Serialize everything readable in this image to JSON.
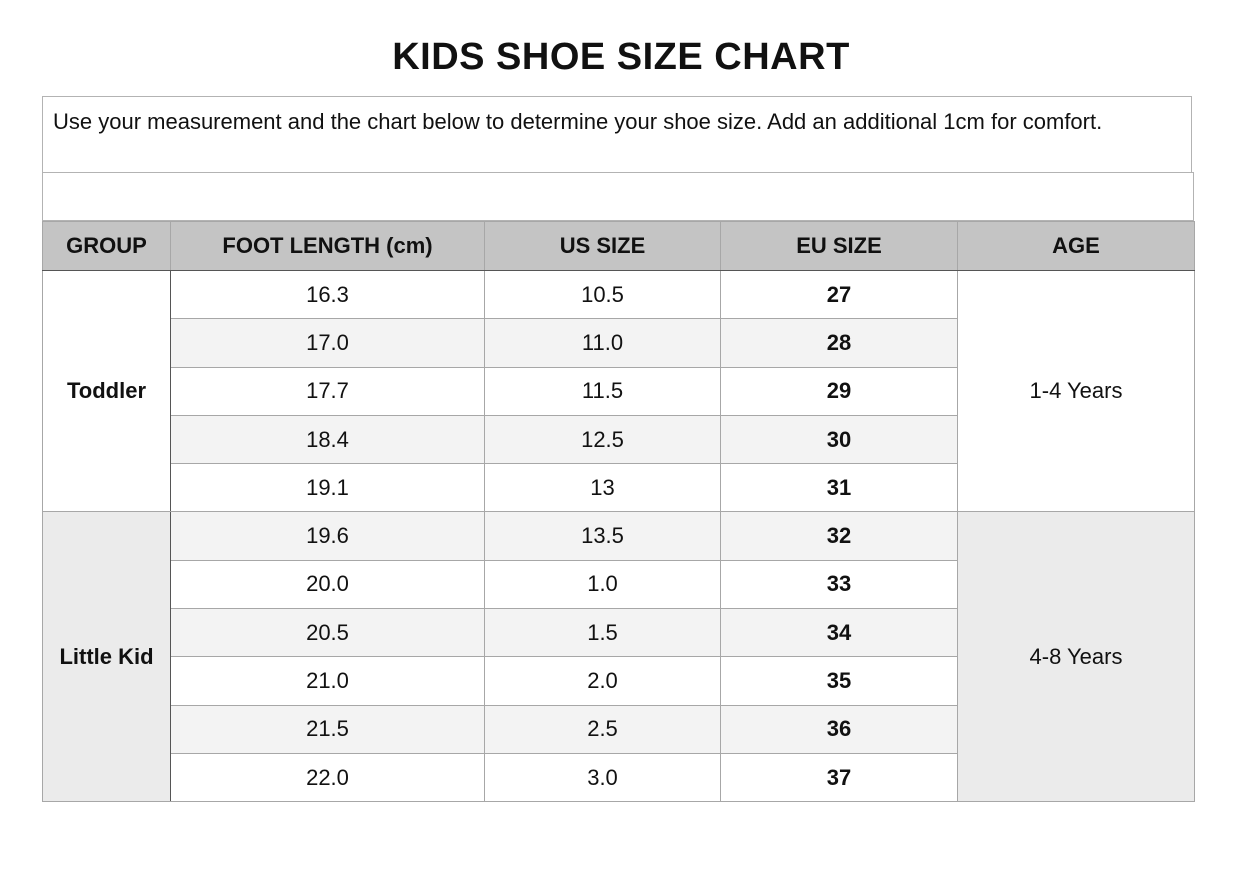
{
  "title": "KIDS SHOE SIZE CHART",
  "note": "Use your measurement and the chart below to determine your shoe size. Add an additional 1cm for comfort.",
  "headers": {
    "group": "GROUP",
    "foot_length": "FOOT LENGTH (cm)",
    "us_size": "US SIZE",
    "eu_size": "EU SIZE",
    "age": "AGE"
  },
  "groups": [
    {
      "name": "Toddler",
      "age": "1-4 Years",
      "rows": [
        {
          "foot_length": "16.3",
          "us_size": "10.5",
          "eu_size": "27"
        },
        {
          "foot_length": "17.0",
          "us_size": "11.0",
          "eu_size": "28"
        },
        {
          "foot_length": "17.7",
          "us_size": "11.5",
          "eu_size": "29"
        },
        {
          "foot_length": "18.4",
          "us_size": "12.5",
          "eu_size": "30"
        },
        {
          "foot_length": "19.1",
          "us_size": "13",
          "eu_size": "31"
        }
      ]
    },
    {
      "name": "Little Kid",
      "age": "4-8 Years",
      "rows": [
        {
          "foot_length": "19.6",
          "us_size": "13.5",
          "eu_size": "32"
        },
        {
          "foot_length": "20.0",
          "us_size": "1.0",
          "eu_size": "33"
        },
        {
          "foot_length": "20.5",
          "us_size": "1.5",
          "eu_size": "34"
        },
        {
          "foot_length": "21.0",
          "us_size": "2.0",
          "eu_size": "35"
        },
        {
          "foot_length": "21.5",
          "us_size": "2.5",
          "eu_size": "36"
        },
        {
          "foot_length": "22.0",
          "us_size": "3.0",
          "eu_size": "37"
        }
      ]
    }
  ]
}
